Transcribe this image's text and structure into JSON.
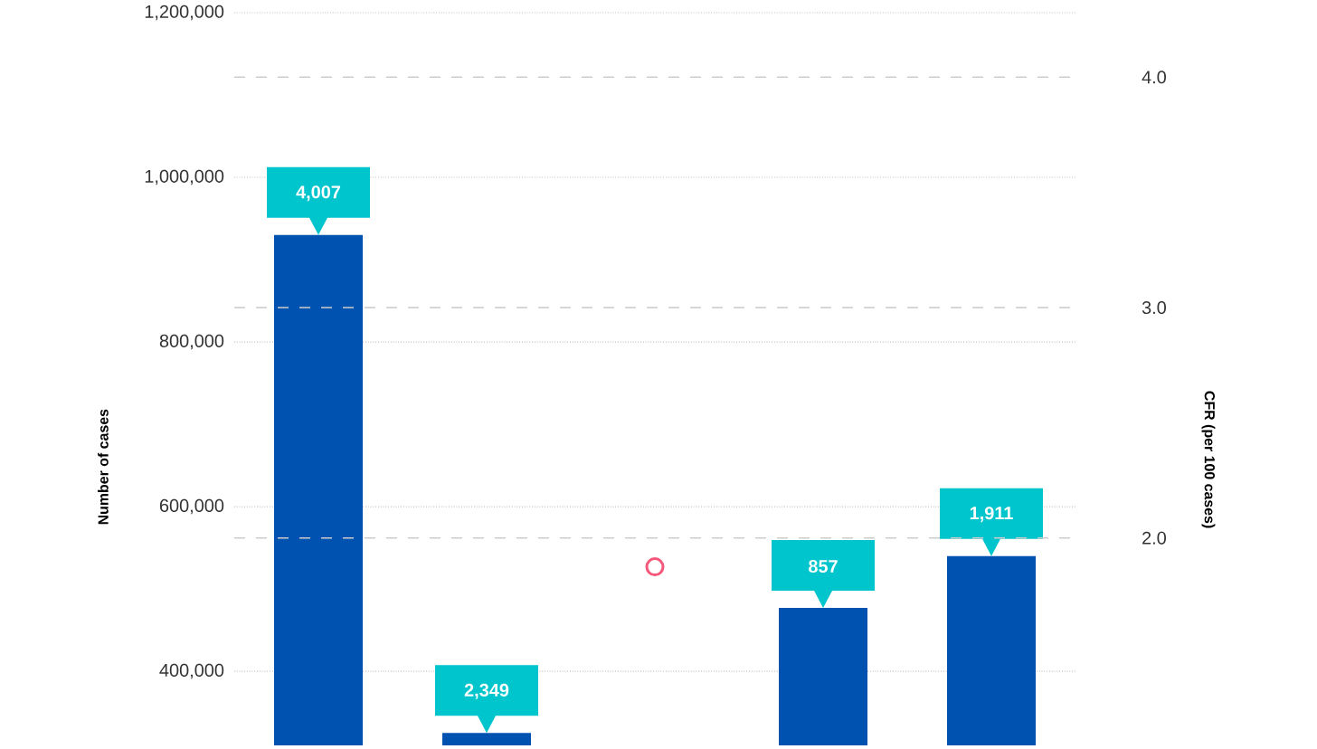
{
  "chart_data": {
    "type": "bar",
    "categories": [
      null,
      null,
      null,
      null,
      null
    ],
    "series": [
      {
        "color": "#0052b0",
        "values": [
          930000,
          325000,
          null,
          477000,
          540000
        ]
      },
      {
        "type": "line",
        "axis": "y2",
        "color": "#f5587a",
        "values": [
          null,
          null,
          1.875,
          null,
          null
        ]
      }
    ],
    "annotations": [
      {
        "text": "4,007",
        "y": 930000
      },
      {
        "text": "2,349",
        "y": 325000
      },
      {
        "text": "857",
        "y": 477000
      },
      {
        "text": "1,911",
        "y": 540000
      }
    ],
    "ylabel": "Number of cases",
    "y2label": "CFR (per 100 cases)",
    "ylim": [
      310000,
      1200000
    ],
    "yticks": [
      {
        "value": 400000,
        "label": "400,000"
      },
      {
        "value": 600000,
        "label": "600,000"
      },
      {
        "value": 800000,
        "label": "800,000"
      },
      {
        "value": 1000000,
        "label": "1,000,000"
      },
      {
        "value": 1200000,
        "label": "1,200,000"
      }
    ],
    "y2lim": [
      1.1,
      4.28
    ],
    "y2ticks": [
      {
        "value": 2,
        "label": "2.0"
      },
      {
        "value": 3,
        "label": "3.0"
      },
      {
        "value": 4,
        "label": "4.0"
      }
    ],
    "grid": true,
    "tick_labels": "y",
    "marker": "circle"
  }
}
